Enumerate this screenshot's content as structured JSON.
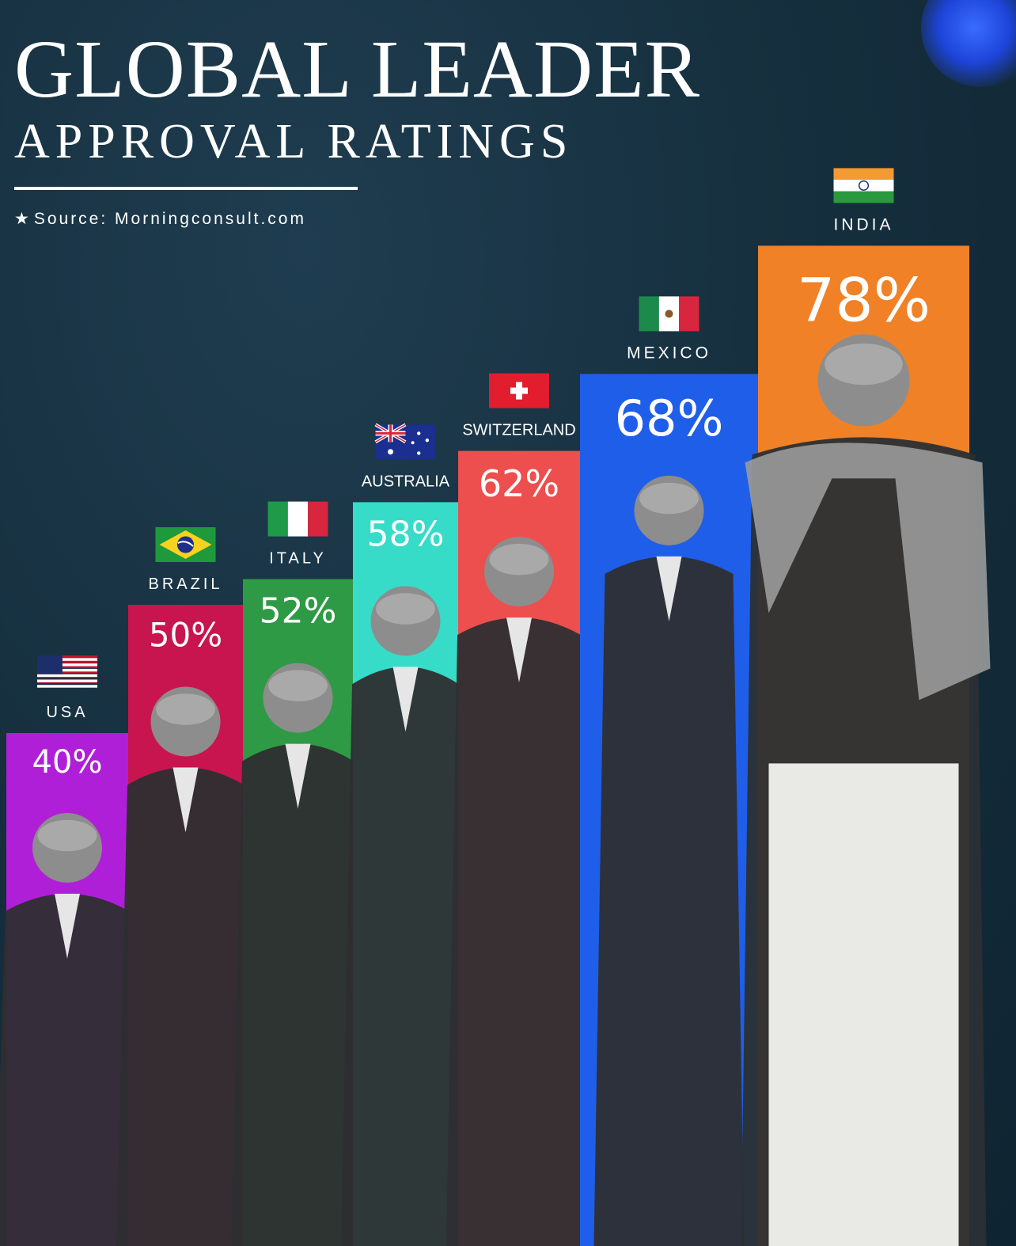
{
  "title": "GLOBAL LEADER",
  "subtitle": "APPROVAL RATINGS",
  "source": "Source: Morningconsult.com",
  "chart_data": {
    "type": "bar",
    "categories": [
      "USA",
      "BRAZIL",
      "ITALY",
      "AUSTRALIA",
      "SWITZERLAND",
      "MEXICO",
      "INDIA"
    ],
    "values": [
      40,
      50,
      52,
      58,
      62,
      68,
      78
    ],
    "value_labels": [
      "40%",
      "50%",
      "52%",
      "58%",
      "62%",
      "68%",
      "78%"
    ],
    "colors": [
      "#b01fd8",
      "#c8154f",
      "#2f9a45",
      "#37dcc9",
      "#ec4f4e",
      "#1f5ee8",
      "#f08127"
    ],
    "flags": [
      "usa-flag",
      "brazil-flag",
      "italy-flag",
      "australia-flag",
      "switzerland-flag",
      "mexico-flag",
      "india-flag"
    ],
    "ylim": [
      0,
      100
    ],
    "grid": false,
    "legend": "none"
  }
}
